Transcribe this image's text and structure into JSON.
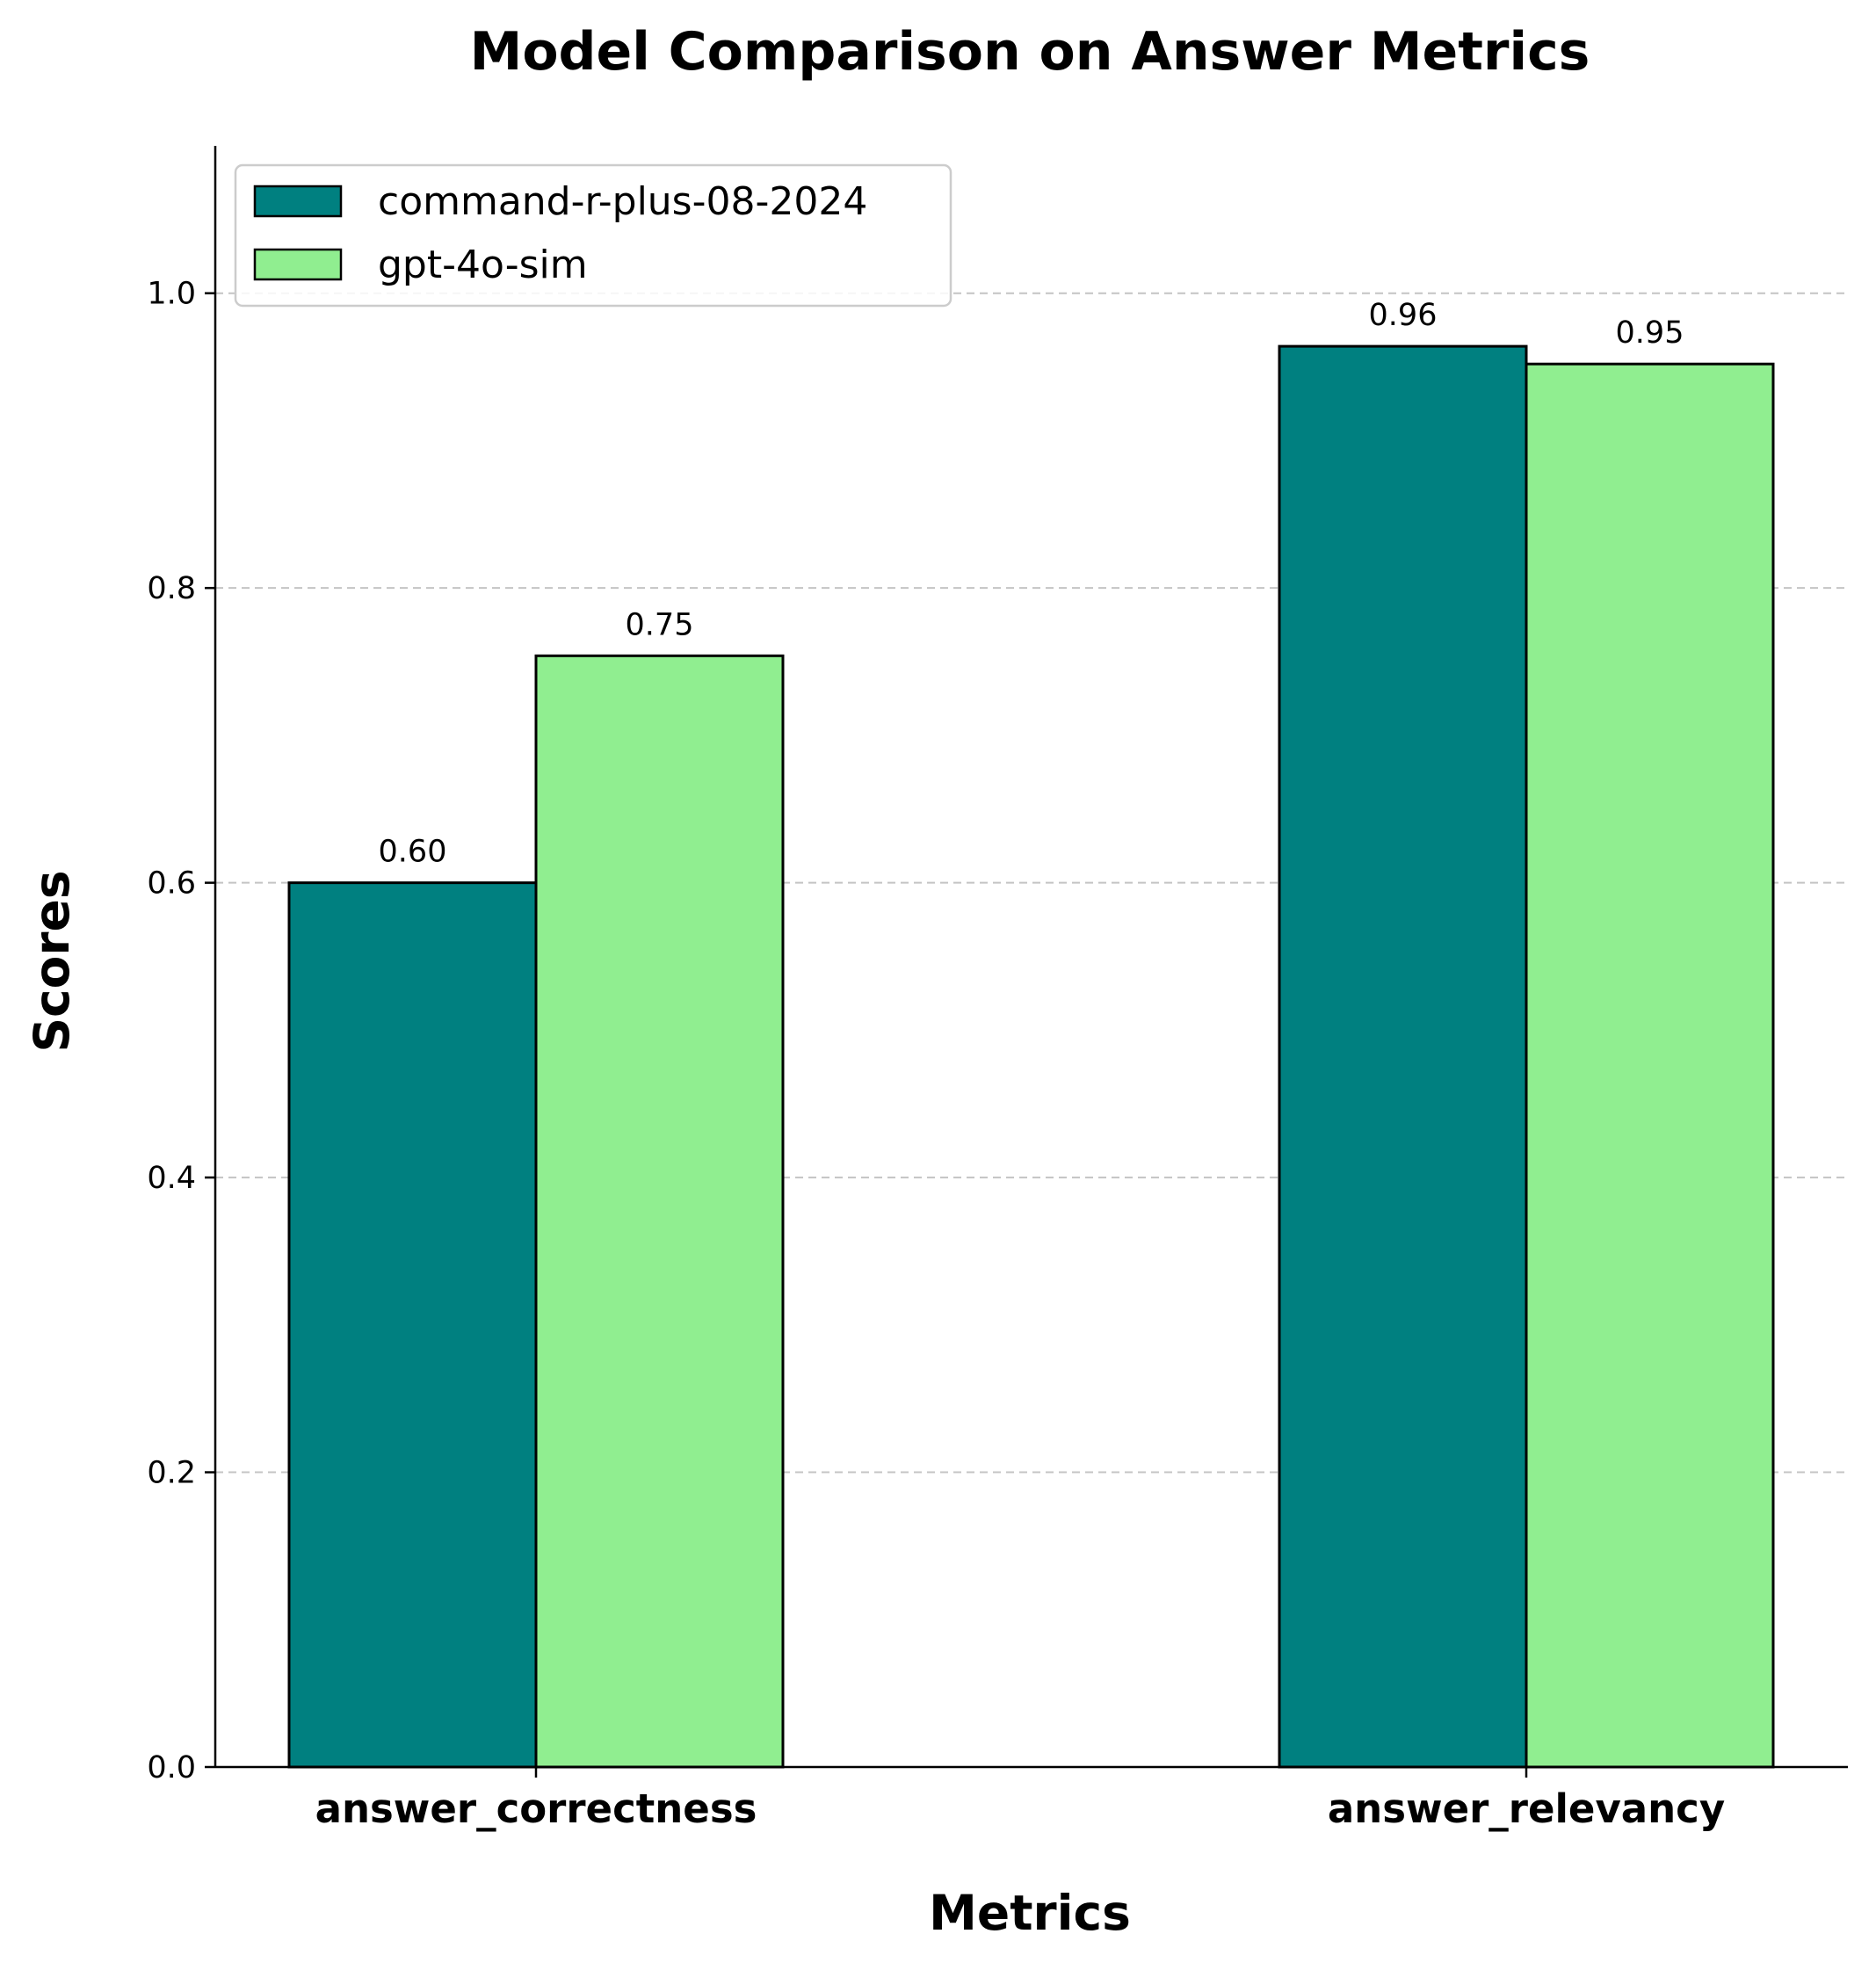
{
  "chart_data": {
    "type": "bar",
    "title": "Model Comparison on Answer Metrics",
    "xlabel": "Metrics",
    "ylabel": "Scores",
    "categories": [
      "answer_correctness",
      "answer_relevancy"
    ],
    "series": [
      {
        "name": "command-r-plus-08-2024",
        "color": "#008080",
        "values": [
          0.6,
          0.964
        ],
        "labels": [
          "0.60",
          "0.96"
        ]
      },
      {
        "name": "gpt-4o-sim",
        "color": "#90EE90",
        "values": [
          0.754,
          0.952
        ],
        "labels": [
          "0.75",
          "0.95"
        ]
      }
    ],
    "ylim": [
      0,
      1.1
    ],
    "yticks": [
      0.0,
      0.2,
      0.4,
      0.6,
      0.8,
      1.0
    ],
    "ytick_labels": [
      "0.0",
      "0.2",
      "0.4",
      "0.6",
      "0.8",
      "1.0"
    ],
    "grid": "y, dashed",
    "legend_position": "top-left"
  }
}
